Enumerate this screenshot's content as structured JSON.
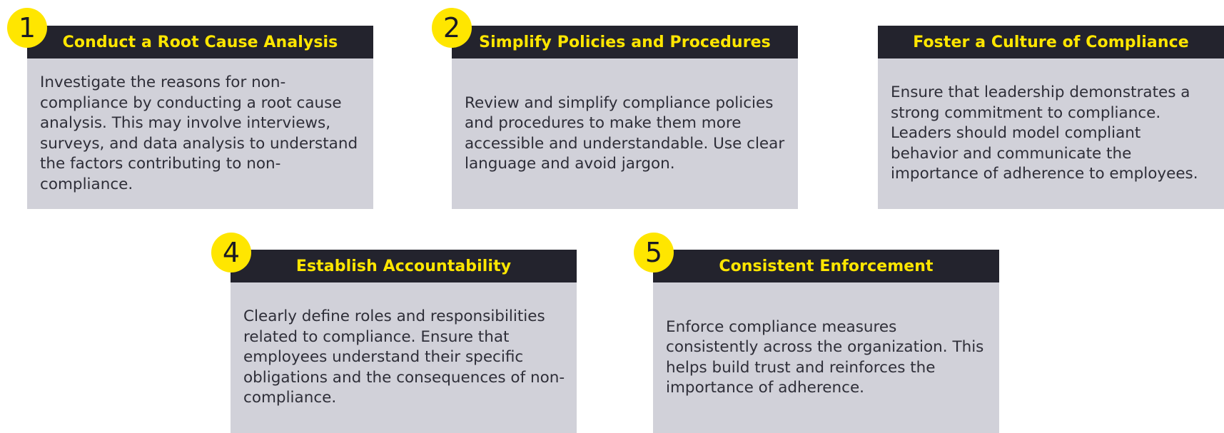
{
  "steps": [
    {
      "number": "1",
      "title": "Conduct a Root Cause Analysis",
      "text": "Investigate the reasons for non-compliance by conducting a root cause analysis. This may involve interviews, surveys, and data analysis to understand the factors contributing to non-compliance."
    },
    {
      "number": "2",
      "title": "Simplify Policies and Procedures",
      "text": "Review and simplify compliance policies and procedures to make them more accessible and understandable. Use clear language and avoid jargon."
    },
    {
      "number": "",
      "title": "Foster a Culture of Compliance",
      "text": "Ensure that leadership demonstrates a strong commitment to compliance. Leaders should model compliant behavior and communicate the importance of adherence to employees."
    },
    {
      "number": "4",
      "title": "Establish Accountability",
      "text": "Clearly define roles and responsibilities related to compliance. Ensure that employees understand their specific obligations and the consequences of non-compliance."
    },
    {
      "number": "5",
      "title": "Consistent Enforcement",
      "text": "Enforce compliance measures consistently across the organization. This helps build trust and reinforces the importance of adherence."
    }
  ],
  "colors": {
    "badge": "#ffe600",
    "header_bg": "#23232d",
    "header_text": "#ffe600",
    "card_bg": "#d1d1d9",
    "body_text": "#2e2e38"
  }
}
